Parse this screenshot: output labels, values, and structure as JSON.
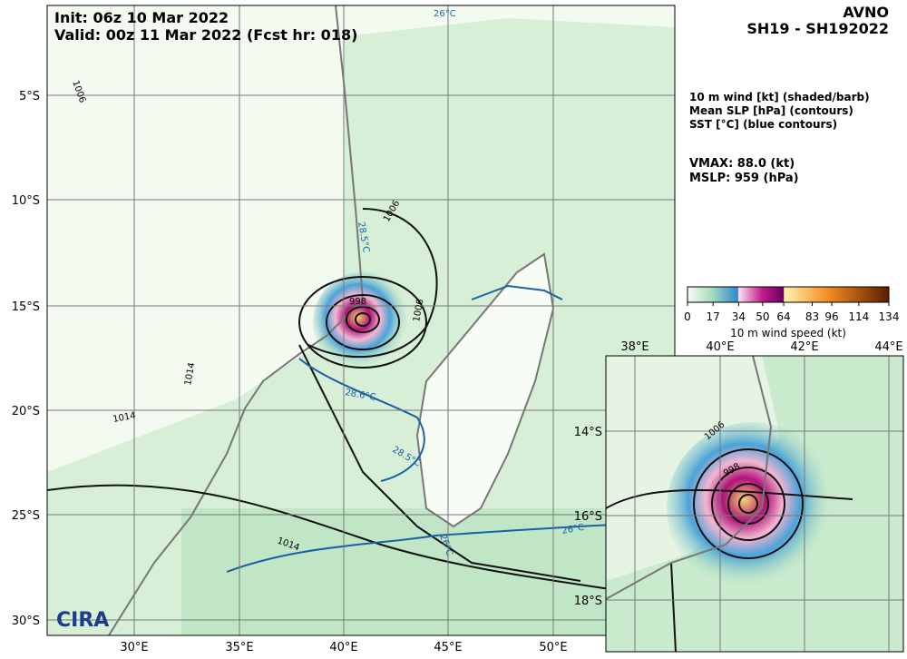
{
  "header": {
    "init": "Init:  06z 10 Mar 2022",
    "valid": "Valid: 00z 11 Mar 2022 (Fcst hr: 018)",
    "model": "AVNO",
    "storm": "SH19 - SH192022"
  },
  "legend_text": [
    "10 m wind [kt] (shaded/barb)",
    "Mean SLP [hPa] (contours)",
    "SST [°C] (blue contours)"
  ],
  "stats": [
    "VMAX:  88.0 (kt)",
    "MSLP:  959 (hPa)"
  ],
  "colorbar": {
    "ticks": [
      0,
      17,
      34,
      50,
      64,
      83,
      96,
      114,
      134
    ],
    "label": "10 m wind speed (kt)"
  },
  "main_map": {
    "x_labels": [
      "30°E",
      "35°E",
      "40°E",
      "45°E",
      "50°E"
    ],
    "y_labels": [
      "5°S",
      "10°S",
      "15°S",
      "20°S",
      "25°S",
      "30°S"
    ],
    "contour_labels": [
      "1006",
      "1006",
      "1006",
      "1014",
      "1014",
      "1014",
      "998",
      "26°C",
      "26°C",
      "26°C",
      "28.5°C",
      "28.5°C",
      "28.6°C"
    ]
  },
  "inset": {
    "x_labels": [
      "38°E",
      "40°E",
      "42°E",
      "44°E"
    ],
    "y_labels": [
      "14°S",
      "16°S",
      "18°S"
    ],
    "contour_labels": [
      "1006",
      "998"
    ]
  },
  "logo": "CIRA"
}
